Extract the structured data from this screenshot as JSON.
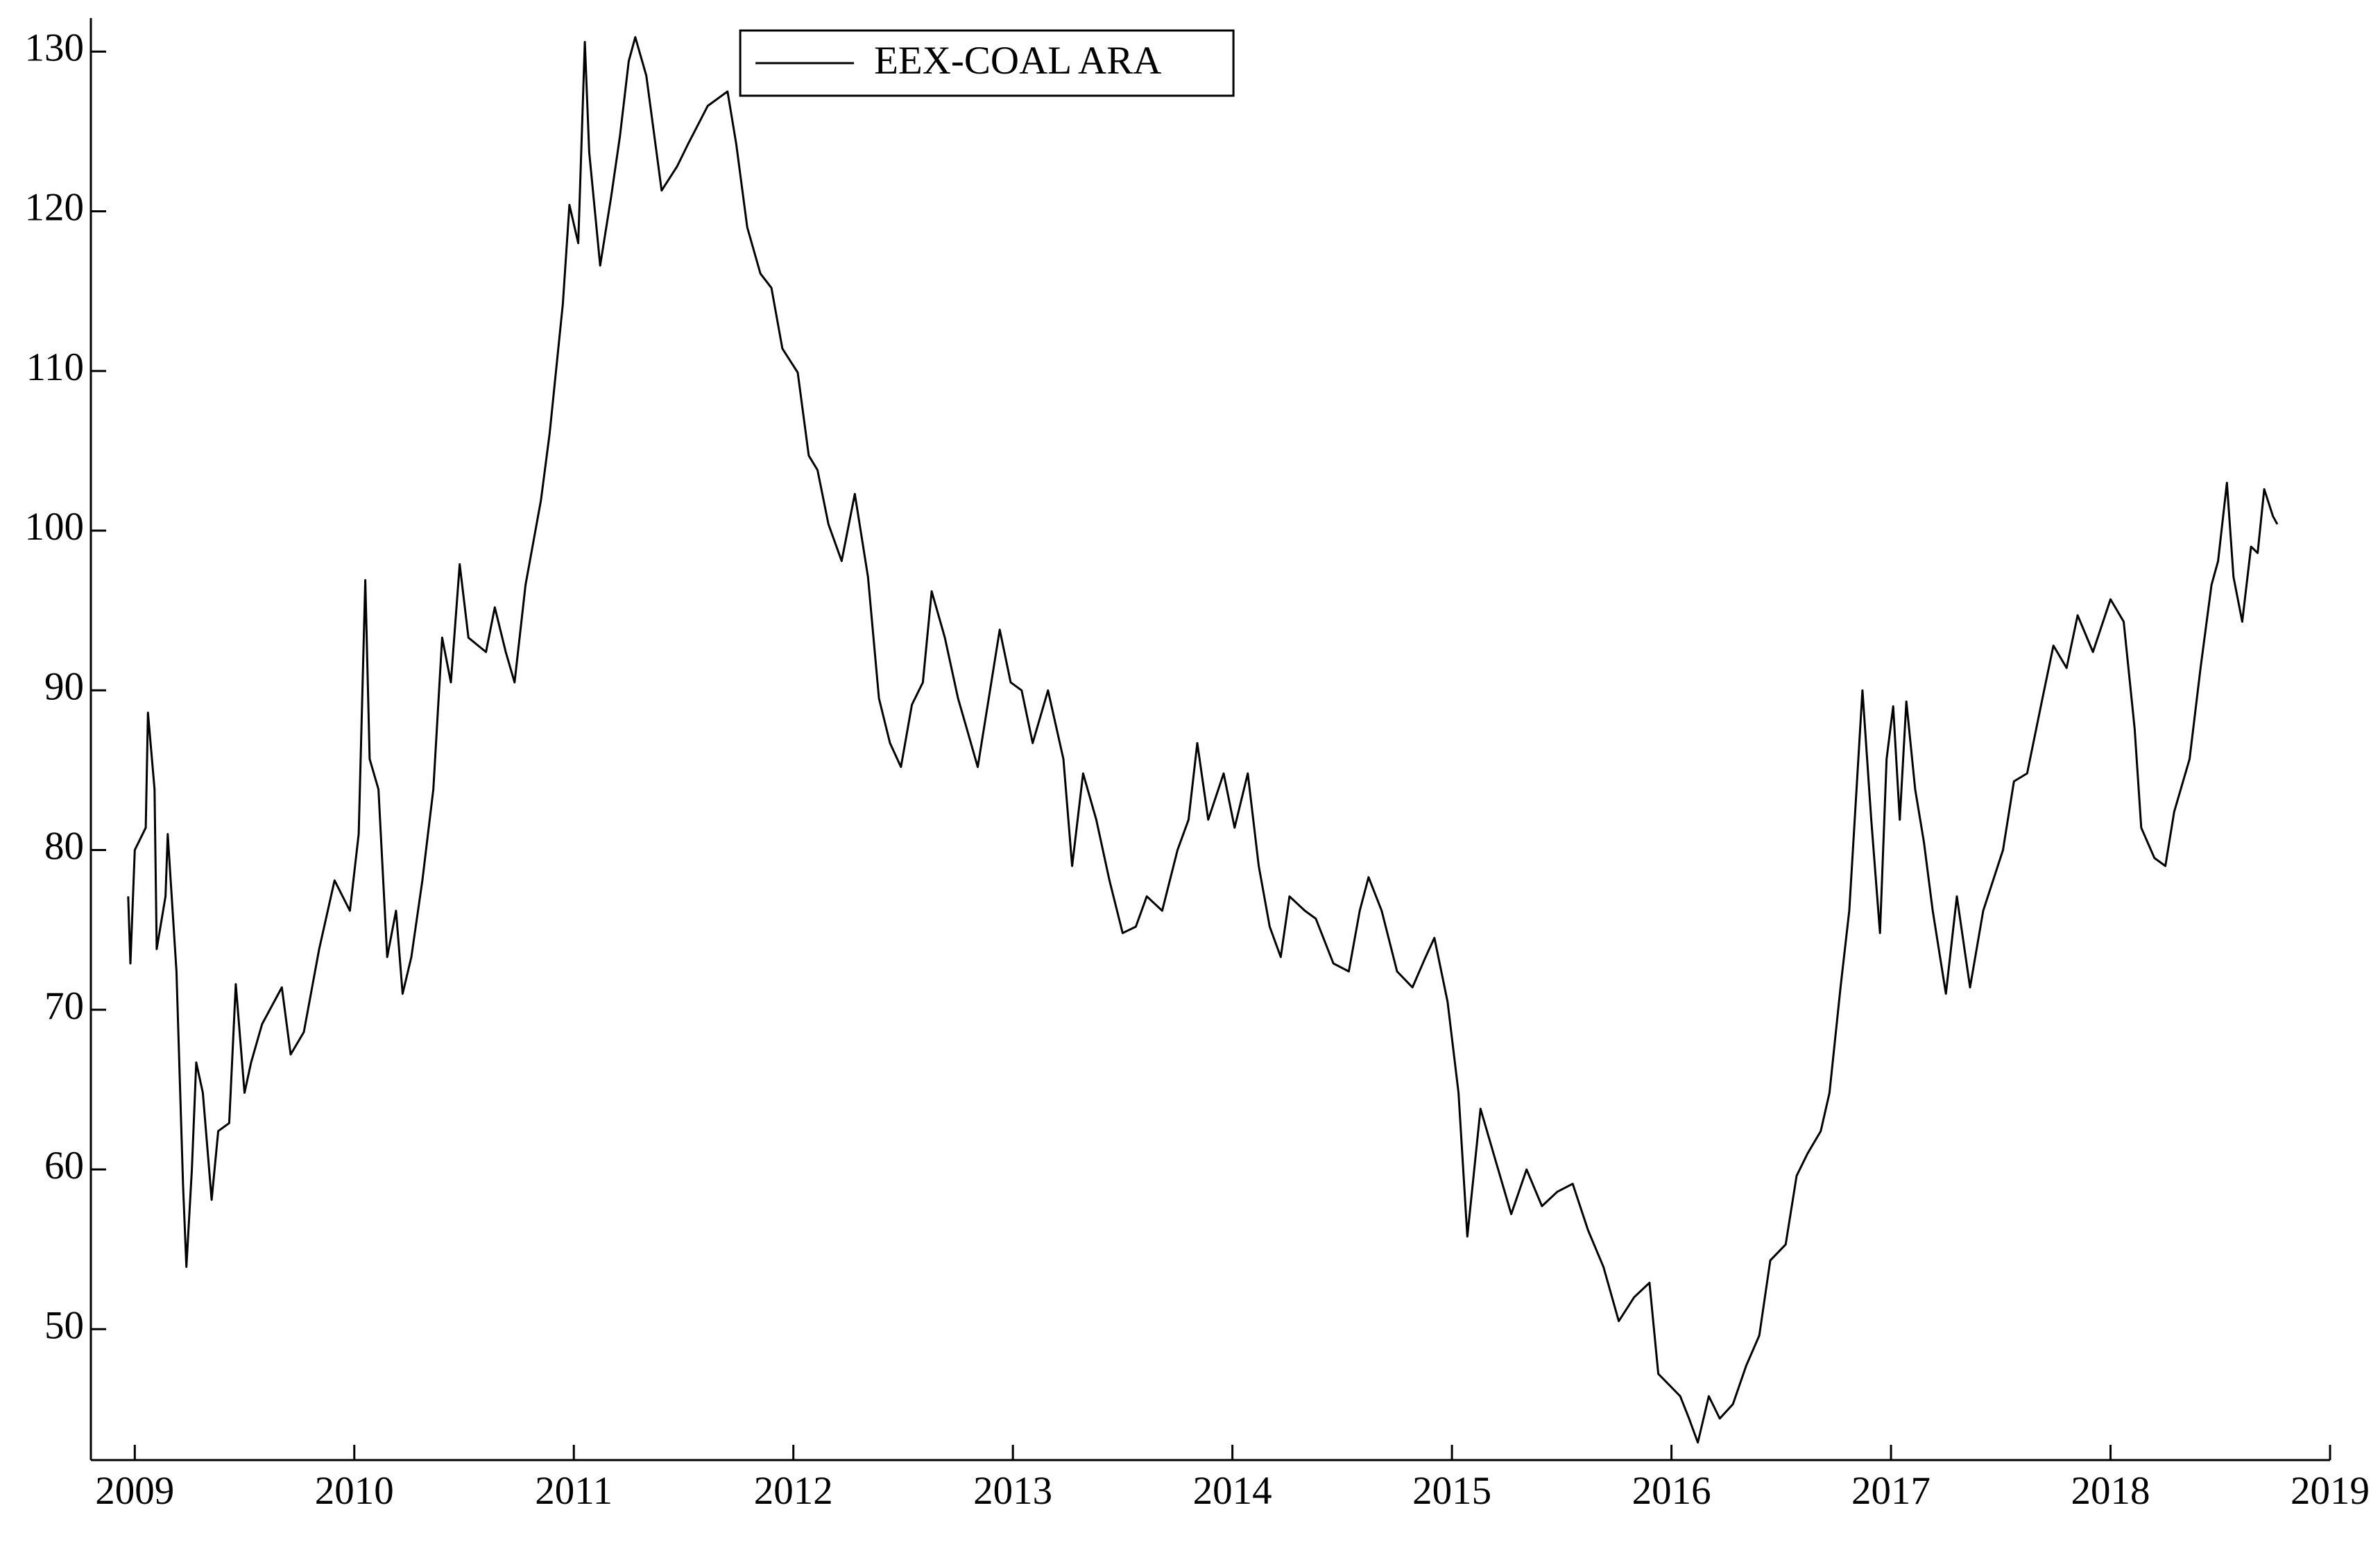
{
  "chart_data": {
    "type": "line",
    "x": [
      2008.97,
      2008.98,
      2009.0,
      2009.05,
      2009.06,
      2009.09,
      2009.1,
      2009.14,
      2009.15,
      2009.19,
      2009.22,
      2009.235,
      2009.26,
      2009.28,
      2009.31,
      2009.35,
      2009.38,
      2009.43,
      2009.46,
      2009.5,
      2009.53,
      2009.58,
      2009.67,
      2009.71,
      2009.77,
      2009.84,
      2009.91,
      2009.98,
      2010.02,
      2010.05,
      2010.07,
      2010.11,
      2010.15,
      2010.19,
      2010.22,
      2010.26,
      2010.31,
      2010.36,
      2010.4,
      2010.44,
      2010.48,
      2010.52,
      2010.6,
      2010.64,
      2010.69,
      2010.73,
      2010.78,
      2010.85,
      2010.89,
      2010.95,
      2010.98,
      2011.02,
      2011.05,
      2011.07,
      2011.12,
      2011.17,
      2011.21,
      2011.25,
      2011.28,
      2011.33,
      2011.4,
      2011.47,
      2011.52,
      2011.61,
      2011.7,
      2011.74,
      2011.79,
      2011.85,
      2011.9,
      2011.95,
      2012.02,
      2012.07,
      2012.11,
      2012.16,
      2012.22,
      2012.28,
      2012.34,
      2012.39,
      2012.44,
      2012.49,
      2012.54,
      2012.59,
      2012.63,
      2012.69,
      2012.75,
      2012.79,
      2012.84,
      2012.89,
      2012.94,
      2012.99,
      2013.04,
      2013.09,
      2013.16,
      2013.23,
      2013.27,
      2013.32,
      2013.38,
      2013.44,
      2013.5,
      2013.56,
      2013.61,
      2013.68,
      2013.75,
      2013.8,
      2013.84,
      2013.89,
      2013.96,
      2014.01,
      2014.07,
      2014.12,
      2014.17,
      2014.22,
      2014.26,
      2014.33,
      2014.38,
      2014.46,
      2014.53,
      2014.58,
      2014.62,
      2014.68,
      2014.75,
      2014.82,
      2014.88,
      2014.92,
      2014.98,
      2015.03,
      2015.07,
      2015.13,
      2015.2,
      2015.27,
      2015.34,
      2015.41,
      2015.48,
      2015.55,
      2015.62,
      2015.69,
      2015.76,
      2015.83,
      2015.9,
      2015.94,
      2016.04,
      2016.08,
      2016.12,
      2016.17,
      2016.22,
      2016.28,
      2016.34,
      2016.4,
      2016.45,
      2016.52,
      2016.57,
      2016.62,
      2016.68,
      2016.72,
      2016.77,
      2016.81,
      2016.87,
      2016.91,
      2016.95,
      2016.98,
      2017.01,
      2017.04,
      2017.07,
      2017.11,
      2017.15,
      2017.19,
      2017.25,
      2017.3,
      2017.36,
      2017.42,
      2017.51,
      2017.56,
      2017.62,
      2017.69,
      2017.74,
      2017.8,
      2017.85,
      2017.92,
      2018.0,
      2018.06,
      2018.11,
      2018.14,
      2018.2,
      2018.25,
      2018.29,
      2018.36,
      2018.41,
      2018.46,
      2018.49,
      2018.53,
      2018.56,
      2018.6,
      2018.64,
      2018.67,
      2018.7,
      2018.74,
      2018.76
    ],
    "series": [
      {
        "name": "EEX-COAL ARA",
        "color": "#000000",
        "values": [
          77.1,
          72.9,
          80,
          81.4,
          88.6,
          83.8,
          73.8,
          77.1,
          81,
          72.4,
          59,
          53.9,
          60,
          66.7,
          64.8,
          58.1,
          62.4,
          62.9,
          71.6,
          64.8,
          66.7,
          69.1,
          71.4,
          67.2,
          68.6,
          73.8,
          78.1,
          76.2,
          81,
          96.9,
          85.7,
          83.8,
          73.3,
          76.2,
          71,
          73.3,
          78.1,
          83.8,
          93.3,
          90.5,
          97.9,
          93.3,
          92.4,
          95.2,
          92.4,
          90.5,
          96.6,
          101.9,
          106.1,
          114.2,
          120.4,
          118,
          130.6,
          123.7,
          116.6,
          120.9,
          124.7,
          129.4,
          130.9,
          128.5,
          121.3,
          122.8,
          124.2,
          126.6,
          127.5,
          124.2,
          119,
          116.1,
          115.2,
          111.4,
          109.9,
          104.7,
          103.8,
          100.4,
          98.1,
          102.3,
          97.1,
          89.5,
          86.7,
          85.2,
          89.1,
          90.5,
          96.2,
          93.3,
          89.5,
          87.6,
          85.2,
          89.5,
          93.8,
          90.5,
          90.0,
          86.7,
          90.0,
          85.7,
          79,
          84.8,
          81.9,
          78.1,
          74.8,
          75.2,
          77.1,
          76.2,
          80,
          81.9,
          86.7,
          81.9,
          84.8,
          81.4,
          84.8,
          79,
          75.2,
          73.3,
          77.1,
          76.2,
          75.7,
          72.9,
          72.4,
          76.2,
          78.3,
          76.2,
          72.4,
          71.4,
          73.3,
          74.5,
          70.5,
          64.8,
          55.8,
          63.8,
          60.5,
          57.2,
          60,
          57.7,
          58.6,
          59.1,
          56.2,
          53.9,
          50.5,
          52,
          52.9,
          47.2,
          45.8,
          44.4,
          42.9,
          45.8,
          44.4,
          45.3,
          47.7,
          49.6,
          54.3,
          55.3,
          59.6,
          61,
          62.4,
          64.8,
          71.4,
          76.2,
          90,
          81.9,
          74.8,
          85.7,
          89,
          81.9,
          89.3,
          83.8,
          80.5,
          76.2,
          71,
          77.1,
          71.4,
          76.2,
          80,
          84.3,
          84.8,
          89.5,
          92.8,
          91.4,
          94.7,
          92.4,
          95.7,
          94.3,
          87.6,
          81.4,
          79.5,
          79,
          82.4,
          85.7,
          91.4,
          96.6,
          98.1,
          103,
          97.1,
          94.3,
          99,
          98.6,
          102.6,
          100.9,
          100.4
        ]
      }
    ],
    "xlim": [
      2008.8,
      2019
    ],
    "xticks": [
      2009,
      2010,
      2011,
      2012,
      2013,
      2014,
      2015,
      2016,
      2017,
      2018,
      2019
    ],
    "ylim": [
      41.8,
      132.1
    ],
    "yticks": [
      50,
      60,
      70,
      80,
      90,
      100,
      110,
      120,
      130
    ],
    "legend": "upper center"
  }
}
